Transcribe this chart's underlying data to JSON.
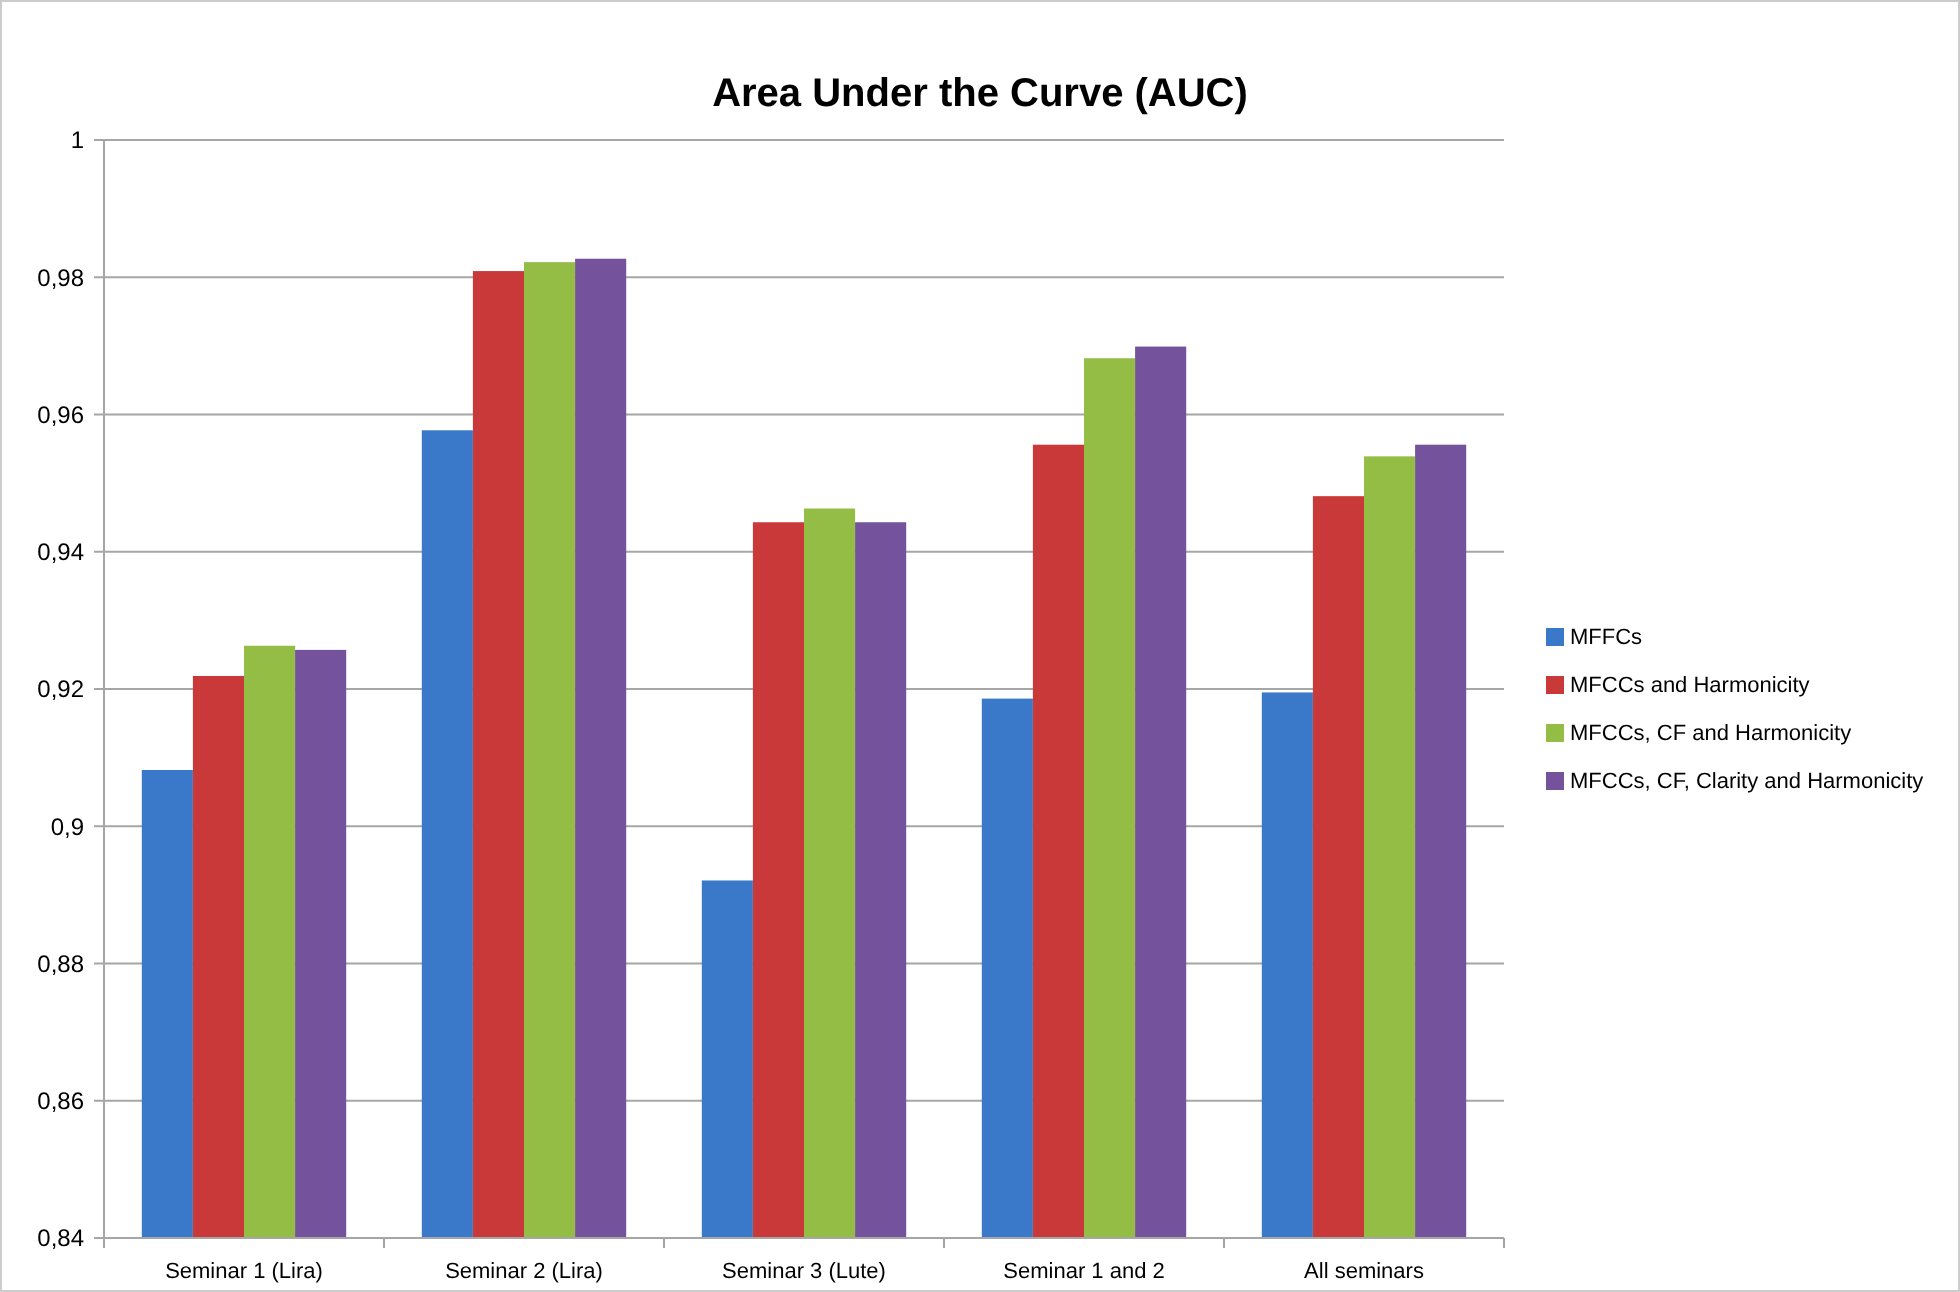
{
  "chart_data": {
    "type": "bar",
    "title": "Area Under the Curve (AUC)",
    "categories": [
      "Seminar 1 (Lira)",
      "Seminar 2 (Lira)",
      "Seminar 3 (Lute)",
      "Seminar 1 and 2",
      "All seminars"
    ],
    "series": [
      {
        "name": "MFFCs",
        "color": "#3a78c9",
        "values": [
          0.9082,
          0.9577,
          0.8921,
          0.9186,
          0.9195
        ]
      },
      {
        "name": "MFCCs and Harmonicity",
        "color": "#c9393a",
        "values": [
          0.9219,
          0.9809,
          0.9443,
          0.9556,
          0.9481
        ]
      },
      {
        "name": "MFCCs, CF and Harmonicity",
        "color": "#93bd45",
        "values": [
          0.9263,
          0.9822,
          0.9463,
          0.9682,
          0.9539
        ]
      },
      {
        "name": "MFCCs, CF, Clarity and Harmonicity",
        "color": "#74529c",
        "values": [
          0.9257,
          0.9827,
          0.9443,
          0.9699,
          0.9556
        ]
      }
    ],
    "ylim": [
      0.84,
      1
    ],
    "yticks": [
      {
        "value": 0.84,
        "label": "0,84"
      },
      {
        "value": 0.86,
        "label": "0,86"
      },
      {
        "value": 0.88,
        "label": "0,88"
      },
      {
        "value": 0.9,
        "label": "0,9"
      },
      {
        "value": 0.92,
        "label": "0,92"
      },
      {
        "value": 0.94,
        "label": "0,94"
      },
      {
        "value": 0.96,
        "label": "0,96"
      },
      {
        "value": 0.98,
        "label": "0,98"
      },
      {
        "value": 1,
        "label": "1"
      }
    ],
    "grid": "y",
    "legend": "right"
  }
}
